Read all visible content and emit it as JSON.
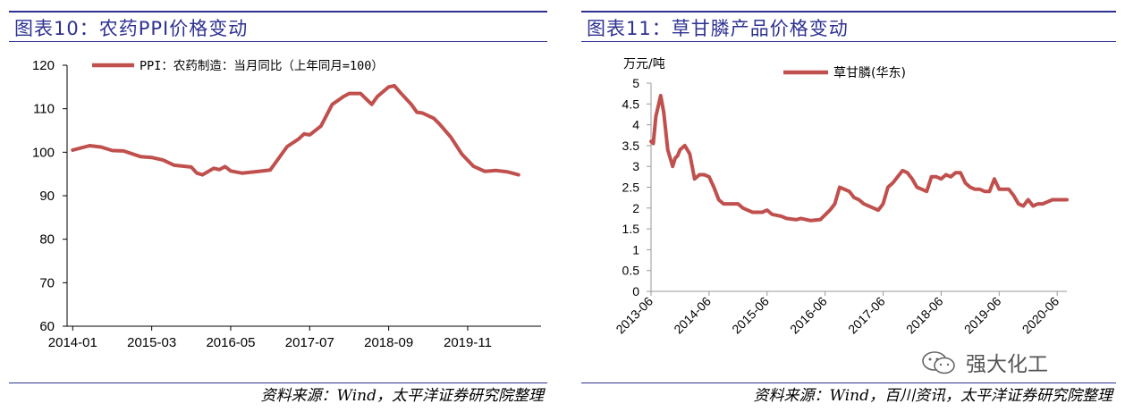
{
  "left": {
    "title": "图表10：农药PPI价格变动",
    "source": "资料来源：Wind，太平洋证券研究院整理"
  },
  "right": {
    "title": "图表11：草甘膦产品价格变动",
    "source": "资料来源：Wind，百川资讯，太平洋证券研究院整理"
  },
  "watermark": {
    "text": "强大化工",
    "icon": "wechat-icon"
  },
  "chart_data": [
    {
      "type": "line",
      "title": "",
      "xlabel": "",
      "ylabel": "",
      "ylim": [
        60,
        120
      ],
      "yticks": [
        60,
        70,
        80,
        90,
        100,
        110,
        120
      ],
      "xticks": [
        "2014-01",
        "2015-03",
        "2016-05",
        "2017-07",
        "2018-09",
        "2019-11"
      ],
      "grid": false,
      "legend": "top-left",
      "color": "#c0504d",
      "series": [
        {
          "name": "PPI：农药制造：当月同比（上年同月=100）",
          "x": [
            "2014-01",
            "2014-04",
            "2014-06",
            "2014-08",
            "2014-10",
            "2015-01",
            "2015-03",
            "2015-05",
            "2015-07",
            "2015-10",
            "2015-11",
            "2015-12",
            "2016-02",
            "2016-03",
            "2016-04",
            "2016-05",
            "2016-07",
            "2016-10",
            "2016-12",
            "2017-03",
            "2017-05",
            "2017-06",
            "2017-07",
            "2017-09",
            "2017-11",
            "2018-01",
            "2018-02",
            "2018-04",
            "2018-06",
            "2018-07",
            "2018-09",
            "2018-10",
            "2018-11",
            "2019-01",
            "2019-02",
            "2019-03",
            "2019-05",
            "2019-06",
            "2019-08",
            "2019-10",
            "2019-12",
            "2020-02",
            "2020-04",
            "2020-06",
            "2020-08"
          ],
          "y": [
            100.5,
            101.5,
            101.2,
            100.4,
            100.3,
            99.0,
            98.8,
            98.2,
            97.0,
            96.6,
            95.2,
            94.8,
            96.3,
            96.0,
            96.7,
            95.7,
            95.2,
            95.6,
            95.9,
            101.3,
            103.0,
            104.2,
            104.0,
            106.0,
            111.0,
            112.8,
            113.5,
            113.5,
            111.0,
            112.8,
            115.0,
            115.3,
            113.8,
            111.0,
            109.2,
            109.0,
            107.8,
            106.5,
            103.5,
            99.5,
            96.8,
            95.6,
            95.8,
            95.5,
            94.8
          ]
        }
      ]
    },
    {
      "type": "line",
      "title": "",
      "xlabel": "",
      "ylabel": "万元/吨",
      "ylim": [
        0,
        5
      ],
      "yticks": [
        0,
        0.5,
        1,
        1.5,
        2,
        2.5,
        3,
        3.5,
        4,
        4.5,
        5
      ],
      "xticks": [
        "2013-06",
        "2014-06",
        "2015-06",
        "2016-06",
        "2017-06",
        "2018-06",
        "2019-06",
        "2020-06"
      ],
      "grid": false,
      "legend": "top",
      "color": "#c0504d",
      "series": [
        {
          "name": "草甘膦(华东)",
          "x": [
            "2013-06-01",
            "2013-06-15",
            "2013-07-01",
            "2013-08-01",
            "2013-08-20",
            "2013-09-15",
            "2013-10-15",
            "2013-11-01",
            "2013-11-15",
            "2013-12-01",
            "2014-01-01",
            "2014-02-01",
            "2014-03-01",
            "2014-04-01",
            "2014-05-01",
            "2014-06-01",
            "2014-07-01",
            "2014-08-01",
            "2014-09-01",
            "2014-10-01",
            "2014-12-01",
            "2015-01-01",
            "2015-03-01",
            "2015-05-01",
            "2015-06-01",
            "2015-07-01",
            "2015-09-01",
            "2015-10-01",
            "2015-12-01",
            "2016-01-01",
            "2016-03-01",
            "2016-05-01",
            "2016-07-01",
            "2016-08-01",
            "2016-09-01",
            "2016-11-01",
            "2016-12-01",
            "2017-01-01",
            "2017-02-01",
            "2017-04-01",
            "2017-05-01",
            "2017-06-01",
            "2017-07-01",
            "2017-08-01",
            "2017-10-01",
            "2017-11-01",
            "2017-12-01",
            "2018-01-01",
            "2018-02-01",
            "2018-03-01",
            "2018-04-01",
            "2018-05-01",
            "2018-06-01",
            "2018-07-01",
            "2018-08-01",
            "2018-09-01",
            "2018-10-01",
            "2018-11-01",
            "2018-12-01",
            "2019-01-01",
            "2019-02-01",
            "2019-03-01",
            "2019-04-01",
            "2019-05-01",
            "2019-06-01",
            "2019-07-01",
            "2019-07-15",
            "2019-08-01",
            "2019-09-01",
            "2019-10-01",
            "2019-11-01",
            "2019-12-01",
            "2020-01-01",
            "2020-02-01",
            "2020-03-01",
            "2020-04-01",
            "2020-05-01",
            "2020-06-01",
            "2020-07-01",
            "2020-08-01"
          ],
          "y": [
            3.6,
            3.55,
            4.2,
            4.7,
            4.3,
            3.4,
            3.0,
            3.2,
            3.25,
            3.4,
            3.5,
            3.3,
            2.7,
            2.8,
            2.8,
            2.75,
            2.5,
            2.2,
            2.1,
            2.1,
            2.1,
            2.0,
            1.9,
            1.9,
            1.95,
            1.85,
            1.8,
            1.75,
            1.72,
            1.75,
            1.7,
            1.72,
            1.95,
            2.1,
            2.5,
            2.4,
            2.25,
            2.2,
            2.1,
            2.0,
            1.95,
            2.1,
            2.5,
            2.6,
            2.9,
            2.85,
            2.7,
            2.5,
            2.45,
            2.4,
            2.75,
            2.75,
            2.7,
            2.8,
            2.75,
            2.85,
            2.85,
            2.6,
            2.5,
            2.45,
            2.45,
            2.4,
            2.4,
            2.7,
            2.45,
            2.45,
            2.45,
            2.45,
            2.3,
            2.1,
            2.05,
            2.2,
            2.05,
            2.1,
            2.1,
            2.15,
            2.2,
            2.2,
            2.2,
            2.2
          ]
        }
      ]
    }
  ]
}
